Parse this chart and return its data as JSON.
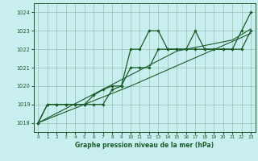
{
  "bg_color": "#c8eef0",
  "grid_color": "#a0c8b8",
  "line_color": "#1a5c28",
  "xlabel": "Graphe pression niveau de la mer (hPa)",
  "ylim": [
    1017.5,
    1024.5
  ],
  "xlim": [
    -0.5,
    23.5
  ],
  "yticks": [
    1018,
    1019,
    1020,
    1021,
    1022,
    1023,
    1024
  ],
  "xticks": [
    0,
    1,
    2,
    3,
    4,
    5,
    6,
    7,
    8,
    9,
    10,
    11,
    12,
    13,
    14,
    15,
    16,
    17,
    18,
    19,
    20,
    21,
    22,
    23
  ],
  "series_jagged": [
    1018.0,
    1019.0,
    1019.0,
    1019.0,
    1019.0,
    1019.0,
    1019.5,
    1019.8,
    1020.0,
    1020.0,
    1022.0,
    1022.0,
    1023.0,
    1023.0,
    1022.0,
    1022.0,
    1022.0,
    1023.0,
    1022.0,
    1022.0,
    1022.0,
    1022.0,
    1023.0,
    1024.0
  ],
  "series_stepped": [
    1018.0,
    1019.0,
    1019.0,
    1019.0,
    1019.0,
    1019.0,
    1019.0,
    1019.0,
    1019.8,
    1020.0,
    1021.0,
    1021.0,
    1021.0,
    1022.0,
    1022.0,
    1022.0,
    1022.0,
    1022.0,
    1022.0,
    1022.0,
    1022.0,
    1022.0,
    1022.0,
    1023.0
  ],
  "series_trend1": [
    1018.0,
    1018.26,
    1018.52,
    1018.78,
    1019.04,
    1019.3,
    1019.56,
    1019.82,
    1020.08,
    1020.34,
    1020.6,
    1020.86,
    1021.12,
    1021.38,
    1021.64,
    1021.9,
    1022.0,
    1022.1,
    1022.2,
    1022.3,
    1022.4,
    1022.5,
    1022.8,
    1023.1
  ],
  "series_trend2": [
    1018.0,
    1018.2,
    1018.4,
    1018.6,
    1018.8,
    1019.0,
    1019.2,
    1019.4,
    1019.6,
    1019.8,
    1020.0,
    1020.22,
    1020.44,
    1020.66,
    1020.88,
    1021.1,
    1021.32,
    1021.54,
    1021.76,
    1021.98,
    1022.2,
    1022.42,
    1022.64,
    1022.86
  ]
}
